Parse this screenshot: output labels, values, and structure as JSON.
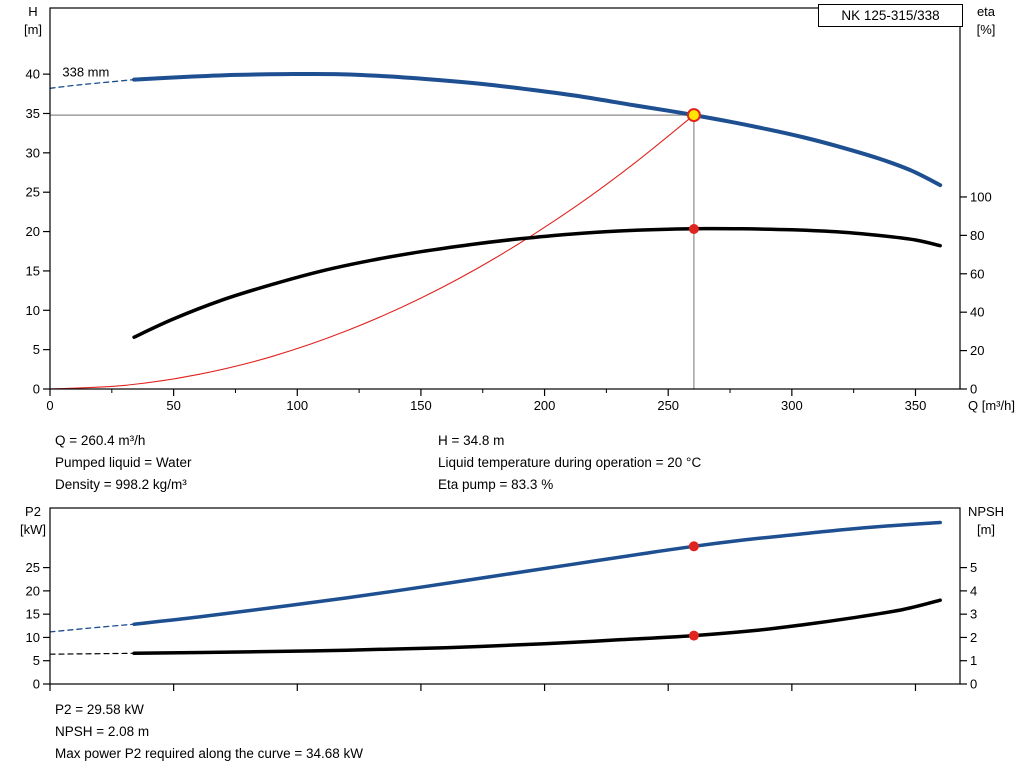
{
  "title_box": "NK 125-315/338",
  "accent_colors": {
    "curve_blue": "#1d4f91",
    "curve_black": "#000000",
    "system_red": "#e02420",
    "marker_yellow": "#ffe600",
    "marker_red": "#e02420",
    "crosshair_gray": "#8c8c8c"
  },
  "info_top": {
    "col1": [
      "Q = 260.4 m³/h",
      "Pumped liquid = Water",
      "Density = 998.2 kg/m³"
    ],
    "col2": [
      "H = 34.8 m",
      "Liquid temperature during operation = 20 °C",
      "Eta pump = 83.3 %"
    ]
  },
  "info_bottom": [
    "P2 = 29.58 kW",
    "NPSH = 2.08 m",
    "Max power P2 required along the curve = 34.68 kW"
  ],
  "chart_data": [
    {
      "type": "line",
      "id": "qh-eta-chart",
      "title": "NK 125-315/338",
      "x_axis": {
        "label": "Q [m³/h]",
        "min": 0,
        "max": 368,
        "major_ticks": [
          0,
          50,
          100,
          150,
          200,
          250,
          300,
          350
        ],
        "minor_step": 25,
        "show_labels": true
      },
      "left_axis": {
        "title_lines": [
          "H",
          "[m]"
        ],
        "min": 0,
        "max": 48.4,
        "ticks": [
          0,
          5,
          10,
          15,
          20,
          25,
          30,
          35,
          40
        ]
      },
      "right_axis": {
        "title_lines": [
          "eta",
          "[%]"
        ],
        "min": 0,
        "max": 198.4,
        "ticks": [
          0,
          20,
          40,
          60,
          80,
          100
        ]
      },
      "annotation": {
        "text": "338 mm",
        "q": 5,
        "value": 39.7,
        "axis": "left"
      },
      "series": [
        {
          "name": "pump-curve-extrapolated",
          "axis": "left",
          "color": "curve_blue",
          "width": 1.3,
          "dash": "5 4",
          "points": [
            [
              0,
              38.2
            ],
            [
              12,
              38.65
            ],
            [
              24,
              39.0
            ],
            [
              34,
              39.3
            ]
          ]
        },
        {
          "name": "system-curve",
          "axis": "left",
          "color": "system_red",
          "width": 1.1,
          "dash": null,
          "points": [
            [
              0,
              0
            ],
            [
              30,
              0.46
            ],
            [
              60,
              1.85
            ],
            [
              90,
              4.16
            ],
            [
              120,
              7.39
            ],
            [
              150,
              11.55
            ],
            [
              180,
              16.63
            ],
            [
              210,
              22.64
            ],
            [
              235,
              28.35
            ],
            [
              260.4,
              34.8
            ]
          ]
        },
        {
          "name": "efficiency-curve",
          "axis": "right",
          "color": "curve_black",
          "width": 3.5,
          "dash": null,
          "points": [
            [
              34,
              27
            ],
            [
              50,
              36.5
            ],
            [
              70,
              46.5
            ],
            [
              90,
              54.5
            ],
            [
              110,
              61.5
            ],
            [
              130,
              67
            ],
            [
              150,
              71.5
            ],
            [
              170,
              75.2
            ],
            [
              190,
              78.2
            ],
            [
              210,
              80.6
            ],
            [
              230,
              82.3
            ],
            [
              250,
              83.2
            ],
            [
              265,
              83.5
            ],
            [
              280,
              83.4
            ],
            [
              300,
              82.9
            ],
            [
              320,
              81.7
            ],
            [
              335,
              80
            ],
            [
              350,
              77.6
            ],
            [
              360,
              74.6
            ]
          ]
        },
        {
          "name": "pump-curve",
          "axis": "left",
          "color": "curve_blue",
          "width": 4,
          "dash": null,
          "points": [
            [
              34,
              39.3
            ],
            [
              55,
              39.65
            ],
            [
              75,
              39.9
            ],
            [
              95,
              40
            ],
            [
              115,
              40
            ],
            [
              135,
              39.75
            ],
            [
              155,
              39.3
            ],
            [
              175,
              38.75
            ],
            [
              195,
              38
            ],
            [
              215,
              37.15
            ],
            [
              235,
              36.1
            ],
            [
              250,
              35.35
            ],
            [
              260.4,
              34.8
            ],
            [
              275,
              33.95
            ],
            [
              290,
              33
            ],
            [
              305,
              31.95
            ],
            [
              320,
              30.7
            ],
            [
              335,
              29.3
            ],
            [
              348,
              27.8
            ],
            [
              360,
              25.9
            ]
          ]
        }
      ],
      "markers": [
        {
          "name": "duty-point",
          "q": 260.4,
          "value": 34.8,
          "axis": "left",
          "shape": "ring",
          "fill": "marker_yellow",
          "stroke": "marker_red",
          "r": 6
        },
        {
          "name": "efficiency-point",
          "q": 260.4,
          "value": 83.3,
          "axis": "right",
          "shape": "dot",
          "fill": "marker_red",
          "r": 5
        }
      ],
      "crosshair": {
        "q": 260.4,
        "value": 34.8
      }
    },
    {
      "type": "line",
      "id": "p2-npsh-chart",
      "x_axis": {
        "label": "",
        "min": 0,
        "max": 368,
        "major_ticks": [
          0,
          50,
          100,
          150,
          200,
          250,
          300,
          350
        ],
        "minor_step": null,
        "show_labels": false
      },
      "left_axis": {
        "title_lines": [
          "P2",
          "[kW]"
        ],
        "min": 0,
        "max": 37.8,
        "ticks": [
          0,
          5,
          10,
          15,
          20,
          25
        ]
      },
      "right_axis": {
        "title_lines": [
          "NPSH",
          "[m]"
        ],
        "min": 0,
        "max": 7.56,
        "ticks": [
          0,
          1,
          2,
          3,
          4,
          5
        ]
      },
      "series": [
        {
          "name": "p2-curve-extrapolated",
          "axis": "left",
          "color": "curve_blue",
          "width": 1.3,
          "dash": "5 4",
          "points": [
            [
              0,
              11.2
            ],
            [
              16,
              12.0
            ],
            [
              34,
              12.85
            ]
          ]
        },
        {
          "name": "npsh-curve-extrapolated",
          "axis": "right",
          "color": "curve_black",
          "width": 1.2,
          "dash": "5 4",
          "points": [
            [
              0,
              1.28
            ],
            [
              34,
              1.32
            ]
          ]
        },
        {
          "name": "p2-curve",
          "axis": "left",
          "color": "curve_blue",
          "width": 3.5,
          "dash": null,
          "points": [
            [
              34,
              12.85
            ],
            [
              60,
              14.4
            ],
            [
              90,
              16.4
            ],
            [
              120,
              18.5
            ],
            [
              150,
              20.8
            ],
            [
              180,
              23.2
            ],
            [
              210,
              25.6
            ],
            [
              240,
              28.0
            ],
            [
              260.4,
              29.58
            ],
            [
              280,
              30.9
            ],
            [
              300,
              32.0
            ],
            [
              320,
              33.1
            ],
            [
              340,
              34.0
            ],
            [
              360,
              34.68
            ]
          ]
        },
        {
          "name": "npsh-curve",
          "axis": "right",
          "color": "curve_black",
          "width": 3.5,
          "dash": null,
          "points": [
            [
              34,
              1.32
            ],
            [
              80,
              1.38
            ],
            [
              120,
              1.45
            ],
            [
              160,
              1.56
            ],
            [
              200,
              1.73
            ],
            [
              230,
              1.9
            ],
            [
              260.4,
              2.08
            ],
            [
              285,
              2.3
            ],
            [
              305,
              2.55
            ],
            [
              325,
              2.85
            ],
            [
              345,
              3.2
            ],
            [
              360,
              3.6
            ]
          ]
        }
      ],
      "markers": [
        {
          "name": "p2-point",
          "q": 260.4,
          "value": 29.58,
          "axis": "left",
          "shape": "dot",
          "fill": "marker_red",
          "r": 5
        },
        {
          "name": "npsh-point",
          "q": 260.4,
          "value": 2.08,
          "axis": "right",
          "shape": "dot",
          "fill": "marker_red",
          "r": 5
        }
      ]
    }
  ]
}
